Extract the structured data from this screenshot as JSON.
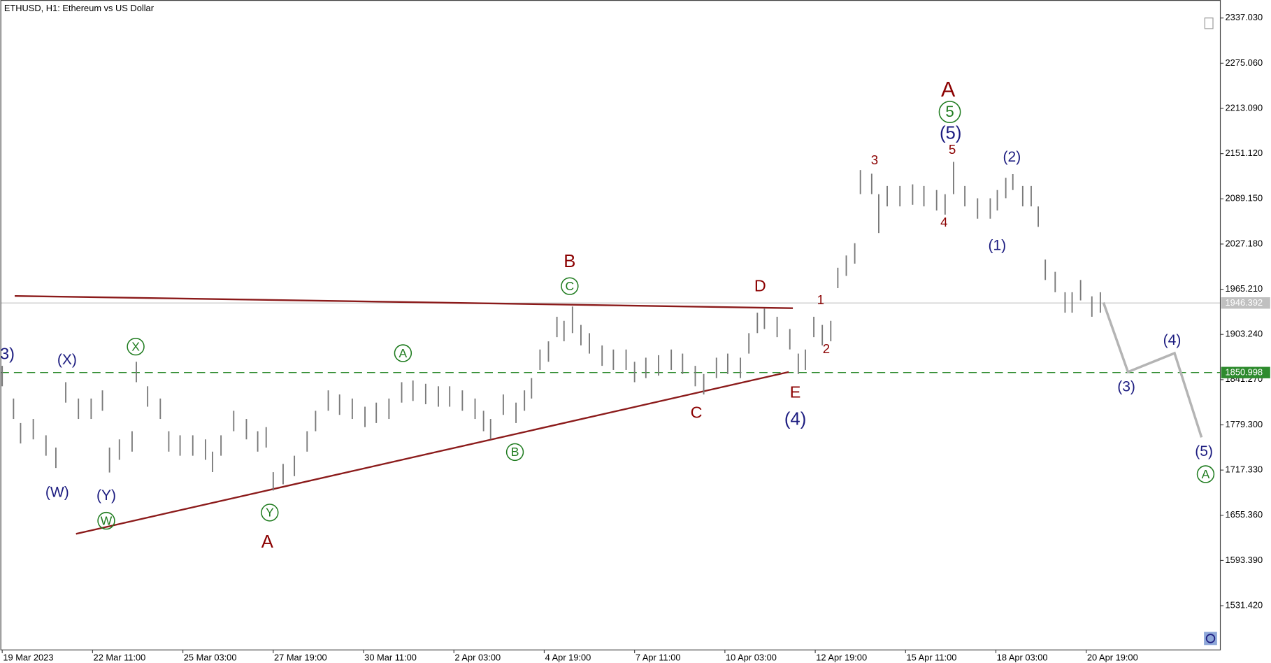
{
  "chart_data": {
    "type": "range_bar",
    "title": "ETHUSD, H1:  Ethereum vs US Dollar",
    "color": "#7a7a7a",
    "x": [
      0,
      8,
      13,
      22,
      31,
      38,
      45,
      54,
      63,
      71,
      76,
      83,
      92,
      95,
      103,
      112,
      118,
      126,
      135,
      144,
      149,
      155,
      164,
      173,
      181,
      187,
      192,
      199,
      207,
      216,
      222,
      231,
      239,
      248,
      257,
      265,
      274,
      283,
      291,
      300,
      309,
      317,
      326,
      335,
      341,
      346,
      355,
      364,
      370,
      375,
      381,
      387,
      393,
      398,
      404,
      410,
      416,
      425,
      433,
      442,
      448,
      456,
      465,
      474,
      482,
      491,
      497,
      506,
      514,
      523,
      529,
      535,
      540,
      549,
      558,
      564,
      569,
      575,
      581,
      587,
      592,
      598,
      604,
      608,
      616,
      621,
      627,
      636,
      645,
      653,
      662,
      668,
      674,
      682,
      691,
      700,
      705,
      711,
      716,
      723,
      729,
      734,
      739,
      746,
      753,
      758,
      764,
      772,
      778
    ],
    "high": [
      1860.2,
      1815.4,
      1781.8,
      1787.4,
      1765.0,
      1748.2,
      1837.8,
      1815.4,
      1815.4,
      1826.6,
      1748.2,
      1759.4,
      1770.6,
      1865.8,
      1832.2,
      1815.4,
      1770.6,
      1765.0,
      1765.0,
      1759.4,
      1742.6,
      1765.0,
      1798.6,
      1787.4,
      1770.6,
      1776.2,
      1714.5,
      1725.8,
      1737.0,
      1770.6,
      1798.6,
      1826.6,
      1821.0,
      1815.4,
      1804.2,
      1809.8,
      1815.4,
      1837.8,
      1840.1,
      1835.6,
      1832.2,
      1832.2,
      1826.6,
      1815.4,
      1798.6,
      1787.4,
      1821.0,
      1809.8,
      1826.6,
      1843.4,
      1882.6,
      1893.8,
      1927.5,
      1921.9,
      1941.5,
      1916.3,
      1905.0,
      1888.2,
      1882.6,
      1882.6,
      1865.8,
      1871.4,
      1874.8,
      1882.6,
      1877.0,
      1860.2,
      1849.0,
      1871.4,
      1877.0,
      1871.4,
      1905.0,
      1933.1,
      1938.7,
      1927.5,
      1910.7,
      1877.0,
      1882.6,
      1927.5,
      1916.3,
      1921.9,
      1994.7,
      2011.5,
      2028.3,
      2128.6,
      2123.6,
      2095.5,
      2106.8,
      2106.8,
      2109.0,
      2106.8,
      2101.2,
      2095.5,
      2139.8,
      2106.8,
      2089.9,
      2089.9,
      2101.2,
      2118.0,
      2123.0,
      2106.8,
      2106.8,
      2078.7,
      2005.9,
      1989.1,
      1961.1,
      1961.1,
      1977.9,
      1955.5,
      1961.1
    ],
    "low": [
      1832.2,
      1787.4,
      1753.8,
      1759.4,
      1737.0,
      1720.2,
      1809.8,
      1787.4,
      1787.4,
      1798.6,
      1714.0,
      1731.4,
      1742.6,
      1837.8,
      1804.2,
      1787.4,
      1742.6,
      1737.0,
      1737.0,
      1731.4,
      1714.6,
      1737.0,
      1770.6,
      1759.4,
      1742.6,
      1748.2,
      1689.3,
      1697.8,
      1709.0,
      1742.6,
      1770.6,
      1798.6,
      1793.0,
      1787.4,
      1776.2,
      1781.8,
      1787.4,
      1809.8,
      1812.1,
      1807.6,
      1804.2,
      1804.2,
      1798.6,
      1787.4,
      1770.6,
      1759.4,
      1793.0,
      1781.8,
      1798.6,
      1815.4,
      1854.6,
      1865.8,
      1899.5,
      1893.9,
      1905.1,
      1888.3,
      1877.0,
      1860.2,
      1854.6,
      1854.6,
      1837.8,
      1843.4,
      1846.8,
      1854.6,
      1849.0,
      1832.2,
      1821.0,
      1843.4,
      1849.0,
      1843.4,
      1877.0,
      1905.1,
      1910.7,
      1899.5,
      1882.7,
      1849.0,
      1854.6,
      1899.5,
      1888.3,
      1893.9,
      1966.7,
      1983.5,
      2000.3,
      2095.6,
      2095.6,
      2042.3,
      2078.8,
      2078.8,
      2081.0,
      2078.8,
      2073.2,
      2067.5,
      2095.6,
      2078.8,
      2061.9,
      2061.9,
      2073.2,
      2090.0,
      2101.2,
      2078.8,
      2078.8,
      2050.7,
      1977.9,
      1961.1,
      1933.1,
      1933.1,
      1949.9,
      1927.5,
      1933.1
    ],
    "xlim": [
      -1,
      863
    ],
    "xticks": [
      {
        "value": 0,
        "label": "19 Mar 2023"
      },
      {
        "value": 64,
        "label": "22 Mar 11:00"
      },
      {
        "value": 128,
        "label": "25 Mar 03:00"
      },
      {
        "value": 192,
        "label": "27 Mar 19:00"
      },
      {
        "value": 256,
        "label": "30 Mar 11:00"
      },
      {
        "value": 320,
        "label": "2 Apr 03:00"
      },
      {
        "value": 384,
        "label": "4 Apr 19:00"
      },
      {
        "value": 448,
        "label": "7 Apr 11:00"
      },
      {
        "value": 512,
        "label": "10 Apr 03:00"
      },
      {
        "value": 576,
        "label": "12 Apr 19:00"
      },
      {
        "value": 640,
        "label": "15 Apr 11:00"
      },
      {
        "value": 704,
        "label": "18 Apr 03:00"
      },
      {
        "value": 768,
        "label": "20 Apr 19:00"
      }
    ],
    "ylim": [
      1470.8,
      2361.7
    ],
    "yticks": [
      {
        "value": 2337.03,
        "label": "2337.030"
      },
      {
        "value": 2275.06,
        "label": "2275.060"
      },
      {
        "value": 2213.09,
        "label": "2213.090"
      },
      {
        "value": 2151.12,
        "label": "2151.120"
      },
      {
        "value": 2089.15,
        "label": "2089.150"
      },
      {
        "value": 2027.18,
        "label": "2027.180"
      },
      {
        "value": 1965.21,
        "label": "1965.210"
      },
      {
        "value": 1903.24,
        "label": "1903.240"
      },
      {
        "value": 1841.27,
        "label": "1841.270"
      },
      {
        "value": 1779.3,
        "label": "1779.300"
      },
      {
        "value": 1717.33,
        "label": "1717.330"
      },
      {
        "value": 1655.36,
        "label": "1655.360"
      },
      {
        "value": 1593.39,
        "label": "1593.390"
      },
      {
        "value": 1531.42,
        "label": "1531.420"
      }
    ],
    "price_lines": [
      {
        "value": 1946.392,
        "color": "#c0c0c0",
        "dashed": false
      },
      {
        "value": 1850.998,
        "color": "#2e8b2e",
        "dashed": true
      }
    ],
    "annotations": [
      {
        "text": "3)",
        "color": "#1c1c80",
        "circled": false
      },
      {
        "text": "(X)",
        "color": "#1c1c80",
        "circled": false
      },
      {
        "text": "(W)",
        "color": "#1c1c80",
        "circled": false
      },
      {
        "text": "(Y)",
        "color": "#1c1c80",
        "circled": false
      },
      {
        "text": "W",
        "color": "#1e7b1e",
        "circled": true
      },
      {
        "text": "X",
        "color": "#1e7b1e",
        "circled": true
      },
      {
        "text": "Y",
        "color": "#1e7b1e",
        "circled": true
      },
      {
        "text": "A",
        "color": "#8b0000",
        "circled": false
      },
      {
        "text": "A",
        "color": "#1e7b1e",
        "circled": true
      },
      {
        "text": "B",
        "color": "#1e7b1e",
        "circled": true
      },
      {
        "text": "C",
        "color": "#1e7b1e",
        "circled": true
      },
      {
        "text": "B",
        "color": "#8b0000",
        "circled": false
      },
      {
        "text": "D",
        "color": "#8b0000",
        "circled": false
      },
      {
        "text": "C",
        "color": "#8b0000",
        "circled": false
      },
      {
        "text": "E",
        "color": "#8b0000",
        "circled": false
      },
      {
        "text": "(4)",
        "color": "#1c1c80",
        "circled": false
      },
      {
        "text": "1",
        "color": "#8b0000",
        "circled": false
      },
      {
        "text": "2",
        "color": "#8b0000",
        "circled": false
      },
      {
        "text": "3",
        "color": "#8b0000",
        "circled": false
      },
      {
        "text": "4",
        "color": "#8b0000",
        "circled": false
      },
      {
        "text": "5",
        "color": "#8b0000",
        "circled": false
      },
      {
        "text": "(5)",
        "color": "#1c1c80",
        "circled": false
      },
      {
        "text": "5",
        "color": "#1e7b1e",
        "circled": true
      },
      {
        "text": "A",
        "color": "#8b0000",
        "circled": false
      },
      {
        "text": "(2)",
        "color": "#1c1c80",
        "circled": false
      },
      {
        "text": "(1)",
        "color": "#1c1c80",
        "circled": false
      },
      {
        "text": "(3)",
        "color": "#1c1c80",
        "circled": false
      },
      {
        "text": "(4)",
        "color": "#1c1c80",
        "circled": false
      },
      {
        "text": "(5)",
        "color": "#1c1c80",
        "circled": false
      },
      {
        "text": "A",
        "color": "#1e7b1e",
        "circled": true
      }
    ]
  }
}
